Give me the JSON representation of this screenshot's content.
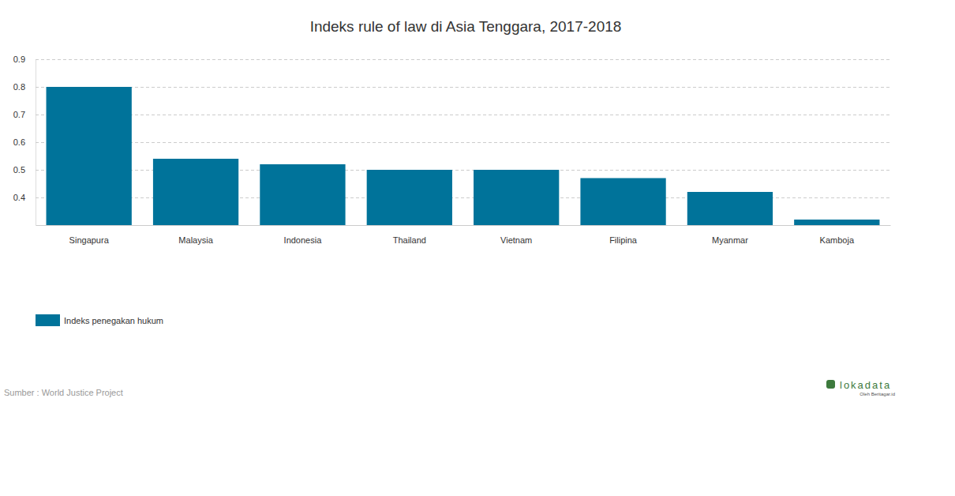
{
  "chart_data": {
    "type": "bar",
    "title": "Indeks rule of law di Asia Tenggara, 2017-2018",
    "categories": [
      "Singapura",
      "Malaysia",
      "Indonesia",
      "Thailand",
      "Vietnam",
      "Filipina",
      "Myanmar",
      "Kamboja"
    ],
    "series": [
      {
        "name": "Indeks penegakan hukum",
        "color": "#00739a",
        "values": [
          0.8,
          0.54,
          0.52,
          0.5,
          0.5,
          0.47,
          0.42,
          0.32
        ]
      }
    ],
    "ylim": [
      0.3,
      0.9
    ],
    "yticks": [
      0.4,
      0.5,
      0.6,
      0.7,
      0.8,
      0.9
    ],
    "grid": true,
    "legend": "bottom-left",
    "source": "Sumber : World Justice Project",
    "credits": [
      "lokadata",
      "Oleh Beritagar.id"
    ]
  }
}
